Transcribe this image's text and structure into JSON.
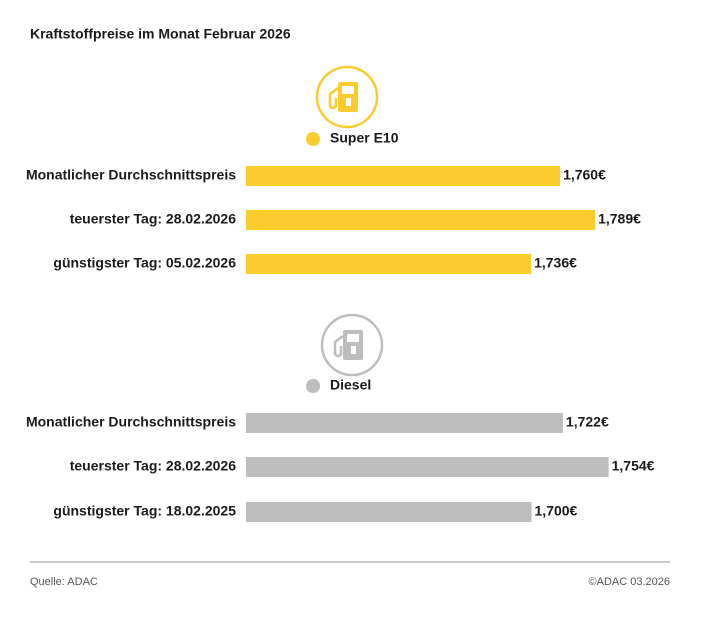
{
  "title": "Kraftstoffpreise im Monat Februar 2026",
  "source": "Quelle: ADAC",
  "copyright": "©ADAC 03.2026",
  "chart_data": [
    {
      "type": "bar",
      "categories": [
        "Monatlicher Durchschnittspreis",
        "teuerster Tag: 28.02.2026",
        "günstigster Tag: 05.02.2026"
      ],
      "series": [
        {
          "name": "Super E10",
          "color": "#fccb2e",
          "values": [
            1.76,
            1.789,
            1.736
          ],
          "value_labels": [
            "1,760€",
            "1,789€",
            "1,736€"
          ]
        }
      ],
      "xlim": [
        1.5,
        1.851
      ]
    },
    {
      "type": "bar",
      "categories": [
        "Monatlicher Durchschnittspreis",
        "teuerster Tag: 28.02.2026",
        "günstigster Tag: 18.02.2025"
      ],
      "series": [
        {
          "name": "Diesel",
          "color": "#bdbdbd",
          "values": [
            1.722,
            1.754,
            1.7
          ],
          "value_labels": [
            "1,722€",
            "1,754€",
            "1,700€"
          ]
        }
      ],
      "xlim": [
        1.5,
        1.797
      ]
    }
  ]
}
